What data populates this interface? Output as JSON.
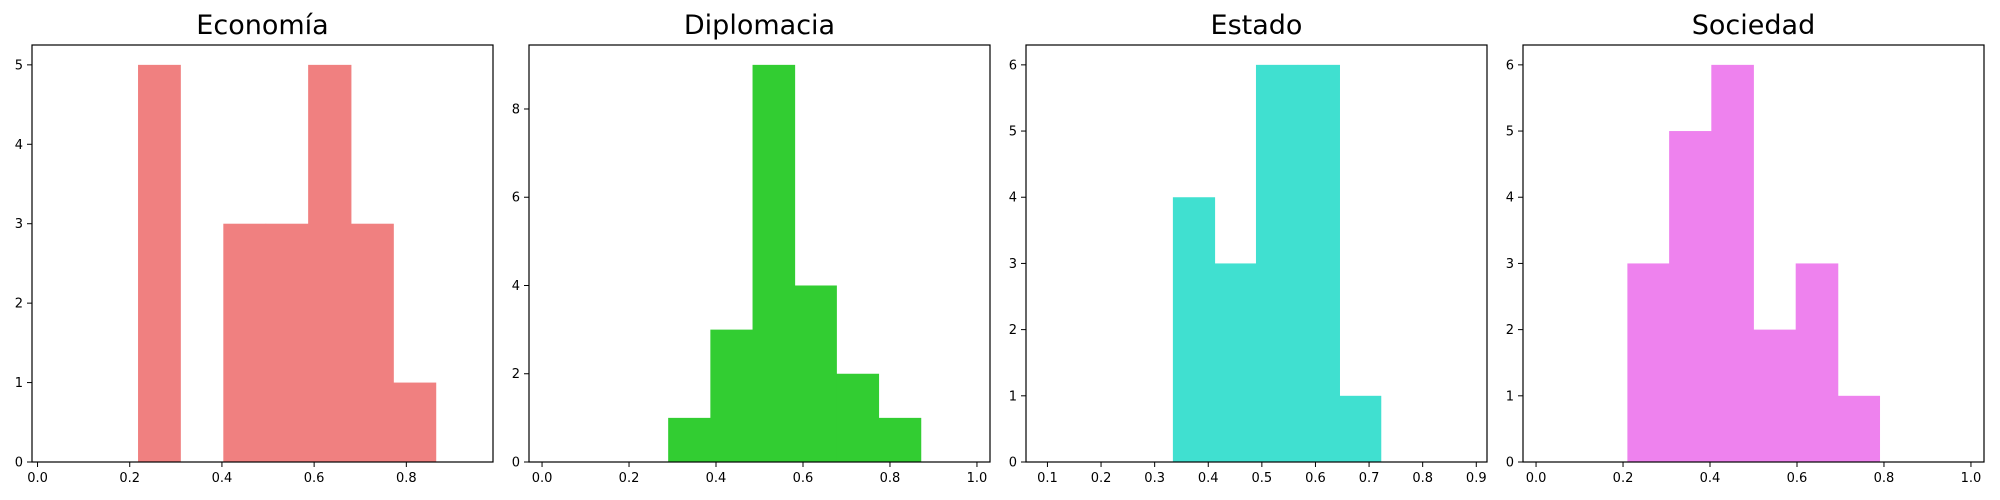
{
  "chart_data": [
    {
      "type": "bar",
      "title": "Economía",
      "color": "#F08080",
      "xlim": [
        -0.012,
        0.988
      ],
      "ylim": [
        0,
        5.25
      ],
      "xticks": [
        0.0,
        0.2,
        0.4,
        0.6,
        0.8
      ],
      "xtick_labels": [
        "0.0",
        "0.2",
        "0.4",
        "0.6",
        "0.8"
      ],
      "yticks": [
        0,
        1,
        2,
        3,
        4,
        5
      ],
      "ytick_labels": [
        "0",
        "1",
        "2",
        "3",
        "4",
        "5"
      ],
      "bins": [
        {
          "x0": 0.218,
          "x1": 0.31,
          "count": 5
        },
        {
          "x0": 0.403,
          "x1": 0.495,
          "count": 3
        },
        {
          "x0": 0.495,
          "x1": 0.587,
          "count": 3
        },
        {
          "x0": 0.587,
          "x1": 0.68,
          "count": 5
        },
        {
          "x0": 0.68,
          "x1": 0.772,
          "count": 3
        },
        {
          "x0": 0.772,
          "x1": 0.864,
          "count": 1
        }
      ]
    },
    {
      "type": "bar",
      "title": "Diplomacia",
      "color": "#32CD32",
      "xlim": [
        -0.03,
        1.03
      ],
      "ylim": [
        0,
        9.45
      ],
      "xticks": [
        0.0,
        0.2,
        0.4,
        0.6,
        0.8,
        1.0
      ],
      "xtick_labels": [
        "0.0",
        "0.2",
        "0.4",
        "0.6",
        "0.8",
        "1.0"
      ],
      "yticks": [
        0,
        2,
        4,
        6,
        8
      ],
      "ytick_labels": [
        "0",
        "2",
        "4",
        "6",
        "8"
      ],
      "bins": [
        {
          "x0": 0.29,
          "x1": 0.387,
          "count": 1
        },
        {
          "x0": 0.387,
          "x1": 0.484,
          "count": 3
        },
        {
          "x0": 0.484,
          "x1": 0.581,
          "count": 9
        },
        {
          "x0": 0.581,
          "x1": 0.677,
          "count": 4
        },
        {
          "x0": 0.677,
          "x1": 0.774,
          "count": 2
        },
        {
          "x0": 0.774,
          "x1": 0.871,
          "count": 1
        }
      ]
    },
    {
      "type": "bar",
      "title": "Estado",
      "color": "#40E0D0",
      "xlim": [
        0.06,
        0.92
      ],
      "ylim": [
        0,
        6.3
      ],
      "xticks": [
        0.1,
        0.2,
        0.3,
        0.4,
        0.5,
        0.6,
        0.7,
        0.8,
        0.9
      ],
      "xtick_labels": [
        "0.1",
        "0.2",
        "0.3",
        "0.4",
        "0.5",
        "0.6",
        "0.7",
        "0.8",
        "0.9"
      ],
      "yticks": [
        0,
        1,
        2,
        3,
        4,
        5,
        6
      ],
      "ytick_labels": [
        "0",
        "1",
        "2",
        "3",
        "4",
        "5",
        "6"
      ],
      "bins": [
        {
          "x0": 0.334,
          "x1": 0.412,
          "count": 4
        },
        {
          "x0": 0.412,
          "x1": 0.489,
          "count": 3
        },
        {
          "x0": 0.489,
          "x1": 0.567,
          "count": 6
        },
        {
          "x0": 0.567,
          "x1": 0.645,
          "count": 6
        },
        {
          "x0": 0.645,
          "x1": 0.722,
          "count": 1
        }
      ]
    },
    {
      "type": "bar",
      "title": "Sociedad",
      "color": "#EE82EE",
      "xlim": [
        -0.03,
        1.03
      ],
      "ylim": [
        0,
        6.3
      ],
      "xticks": [
        0.0,
        0.2,
        0.4,
        0.6,
        0.8,
        1.0
      ],
      "xtick_labels": [
        "0.0",
        "0.2",
        "0.4",
        "0.6",
        "0.8",
        "1.0"
      ],
      "yticks": [
        0,
        1,
        2,
        3,
        4,
        5,
        6
      ],
      "ytick_labels": [
        "0",
        "1",
        "2",
        "3",
        "4",
        "5",
        "6"
      ],
      "bins": [
        {
          "x0": 0.21,
          "x1": 0.306,
          "count": 3
        },
        {
          "x0": 0.306,
          "x1": 0.403,
          "count": 5
        },
        {
          "x0": 0.403,
          "x1": 0.5,
          "count": 6
        },
        {
          "x0": 0.5,
          "x1": 0.597,
          "count": 2
        },
        {
          "x0": 0.597,
          "x1": 0.694,
          "count": 3
        },
        {
          "x0": 0.694,
          "x1": 0.79,
          "count": 1
        }
      ]
    }
  ]
}
